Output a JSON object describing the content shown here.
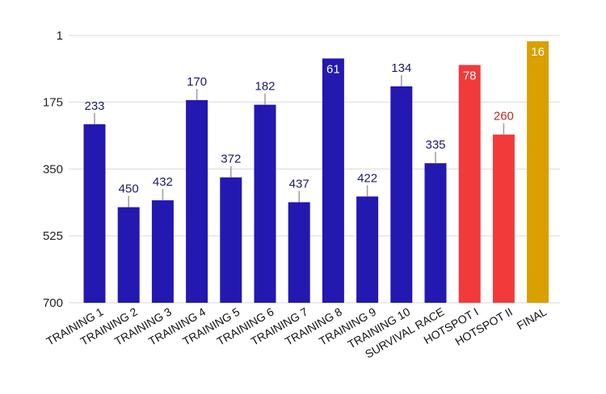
{
  "chart_data": {
    "type": "bar",
    "title": "",
    "xlabel": "",
    "ylabel": "",
    "y_axis": {
      "reversed": true,
      "ylim": [
        1,
        700
      ],
      "ticks": [
        1,
        175,
        350,
        525,
        700
      ],
      "grid": true
    },
    "bar_base_value": 700,
    "colors": {
      "training": "#2318b0",
      "hotspot": "#f23a3a",
      "final": "#d9a000",
      "value_label_dark": "#1a1a66",
      "value_label_red": "#b52a2a",
      "value_label_inside": "#ffffff",
      "gridline": "#d9d9d9",
      "leader_line": "#9e9e9e"
    },
    "bars": [
      {
        "category": "TRAINING 1",
        "value": 233,
        "label": "233",
        "group": "training",
        "label_position": "above"
      },
      {
        "category": "TRAINING 2",
        "value": 450,
        "label": "450",
        "group": "training",
        "label_position": "above"
      },
      {
        "category": "TRAINING 3",
        "value": 432,
        "label": "432",
        "group": "training",
        "label_position": "above"
      },
      {
        "category": "TRAINING 4",
        "value": 170,
        "label": "170",
        "group": "training",
        "label_position": "above"
      },
      {
        "category": "TRAINING 5",
        "value": 372,
        "label": "372",
        "group": "training",
        "label_position": "above"
      },
      {
        "category": "TRAINING 6",
        "value": 182,
        "label": "182",
        "group": "training",
        "label_position": "above"
      },
      {
        "category": "TRAINING 7",
        "value": 437,
        "label": "437",
        "group": "training",
        "label_position": "above"
      },
      {
        "category": "TRAINING 8",
        "value": 61,
        "label": "61",
        "group": "training",
        "label_position": "inside"
      },
      {
        "category": "TRAINING 9",
        "value": 422,
        "label": "422",
        "group": "training",
        "label_position": "above"
      },
      {
        "category": "TRAINING 10",
        "value": 134,
        "label": "134",
        "group": "training",
        "label_position": "above"
      },
      {
        "category": "SURVIVAL RACE",
        "value": 335,
        "label": "335",
        "group": "training",
        "label_position": "above"
      },
      {
        "category": "HOTSPOT I",
        "value": 78,
        "label": "78",
        "group": "hotspot",
        "label_position": "inside"
      },
      {
        "category": "HOTSPOT II",
        "value": 260,
        "label": "260",
        "group": "hotspot",
        "label_position": "above"
      },
      {
        "category": "FINAL",
        "value": 16,
        "label": "16",
        "group": "final",
        "label_position": "inside"
      }
    ]
  }
}
